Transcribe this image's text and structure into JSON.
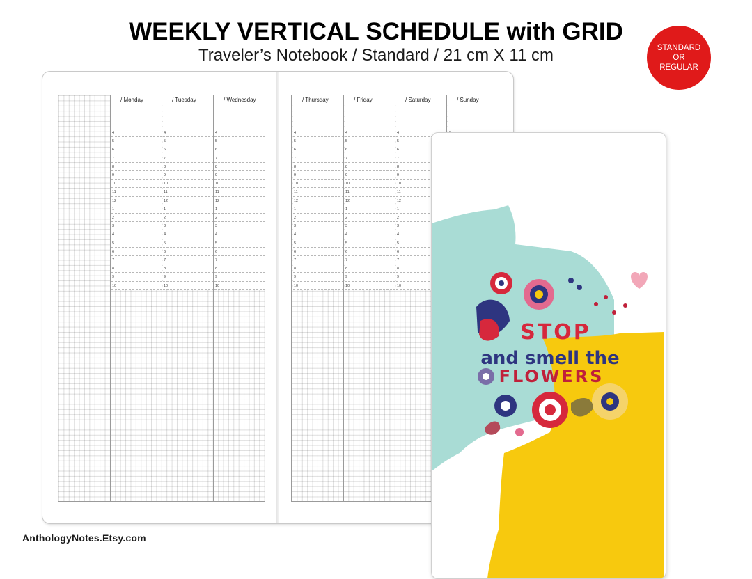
{
  "header": {
    "title_bold": "WEEKLY VERTICAL",
    "title_rest": " SCHEDULE with GRID",
    "subtitle": "Traveler’s Notebook / Standard / 21 cm X 11 cm"
  },
  "badge": {
    "line1": "STANDARD",
    "line2": "OR",
    "line3": "REGULAR",
    "color": "#e01a1a"
  },
  "planner": {
    "left_days": [
      "/ Monday",
      "/ Tuesday",
      "/ Wednesday"
    ],
    "right_days": [
      "/ Thursday",
      "/ Friday",
      "/ Saturday",
      "/ Sunday"
    ],
    "hours": [
      "4",
      "5",
      "6",
      "7",
      "8",
      "9",
      "10",
      "11",
      "12",
      "1",
      "2",
      "3",
      "4",
      "5",
      "6",
      "7",
      "8",
      "9",
      "10"
    ]
  },
  "insert": {
    "art_line1": "STOP",
    "art_line2": "and smell the",
    "art_line3": "FLOWERS",
    "colors": {
      "mint": "#a9dcd5",
      "yellow": "#f7c90e",
      "red": "#d6283c",
      "navy": "#2e3580"
    }
  },
  "footer": {
    "brand": "AnthologyNotes.Etsy.com"
  }
}
